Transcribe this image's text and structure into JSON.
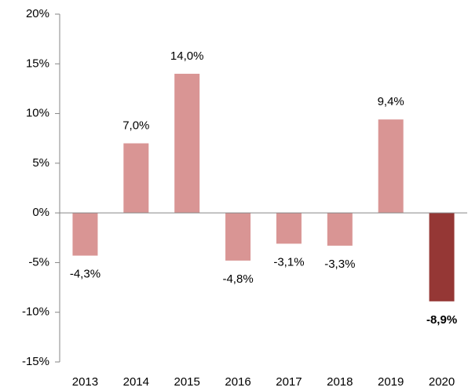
{
  "chart_data": {
    "type": "bar",
    "categories": [
      "2013",
      "2014",
      "2015",
      "2016",
      "2017",
      "2018",
      "2019",
      "2020"
    ],
    "values": [
      -4.3,
      7.0,
      14.0,
      -4.8,
      -3.1,
      -3.3,
      9.4,
      -8.9
    ],
    "value_labels": [
      "-4,3%",
      "7,0%",
      "14,0%",
      "-4,8%",
      "-3,1%",
      "-3,3%",
      "9,4%",
      "-8,9%"
    ],
    "value_label_weights": [
      "normal",
      "normal",
      "normal",
      "normal",
      "normal",
      "normal",
      "normal",
      "bold"
    ],
    "colors": [
      "#d99594",
      "#d99594",
      "#d99594",
      "#d99594",
      "#d99594",
      "#d99594",
      "#d99594",
      "#953735"
    ],
    "ylim": [
      -15,
      20
    ],
    "yticks": [
      {
        "value": -15,
        "label": "-15%"
      },
      {
        "value": -10,
        "label": "-10%"
      },
      {
        "value": -5,
        "label": "-5%"
      },
      {
        "value": 0,
        "label": "0%"
      },
      {
        "value": 5,
        "label": "5%"
      },
      {
        "value": 10,
        "label": "10%"
      },
      {
        "value": 15,
        "label": "15%"
      },
      {
        "value": 20,
        "label": "20%"
      }
    ],
    "grid": false
  }
}
